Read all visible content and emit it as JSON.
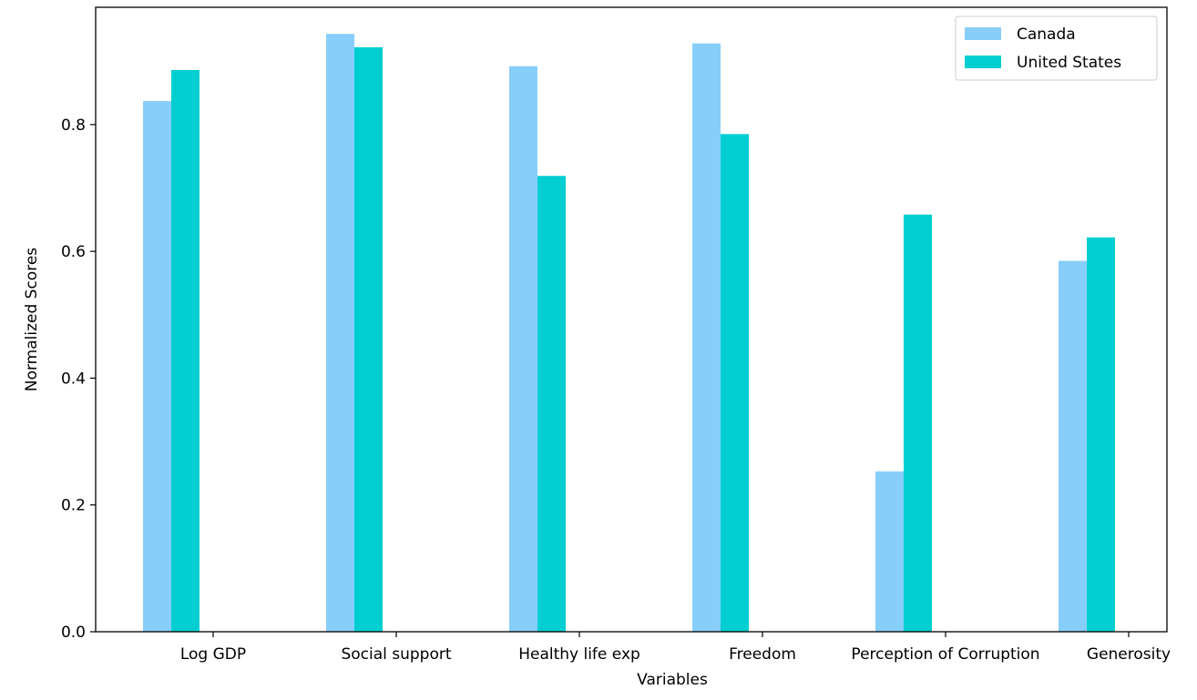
{
  "chart_data": {
    "type": "bar",
    "title": "",
    "xlabel": "Variables",
    "ylabel": "Normalized Scores",
    "categories": [
      "Log GDP",
      "Social support",
      "Healthy life exp",
      "Freedom",
      "Perception of Corruption",
      "Generosity"
    ],
    "series": [
      {
        "name": "Canada",
        "color": "#87CEFA",
        "values": [
          0.837,
          0.943,
          0.892,
          0.928,
          0.253,
          0.585
        ]
      },
      {
        "name": "United States",
        "color": "#00CED1",
        "values": [
          0.886,
          0.922,
          0.719,
          0.785,
          0.658,
          0.622
        ]
      }
    ],
    "yticks": [
      "0.0",
      "0.2",
      "0.4",
      "0.6",
      "0.8"
    ],
    "ylim": [
      0,
      0.985
    ],
    "grid": false,
    "legend_position": "top-right"
  }
}
